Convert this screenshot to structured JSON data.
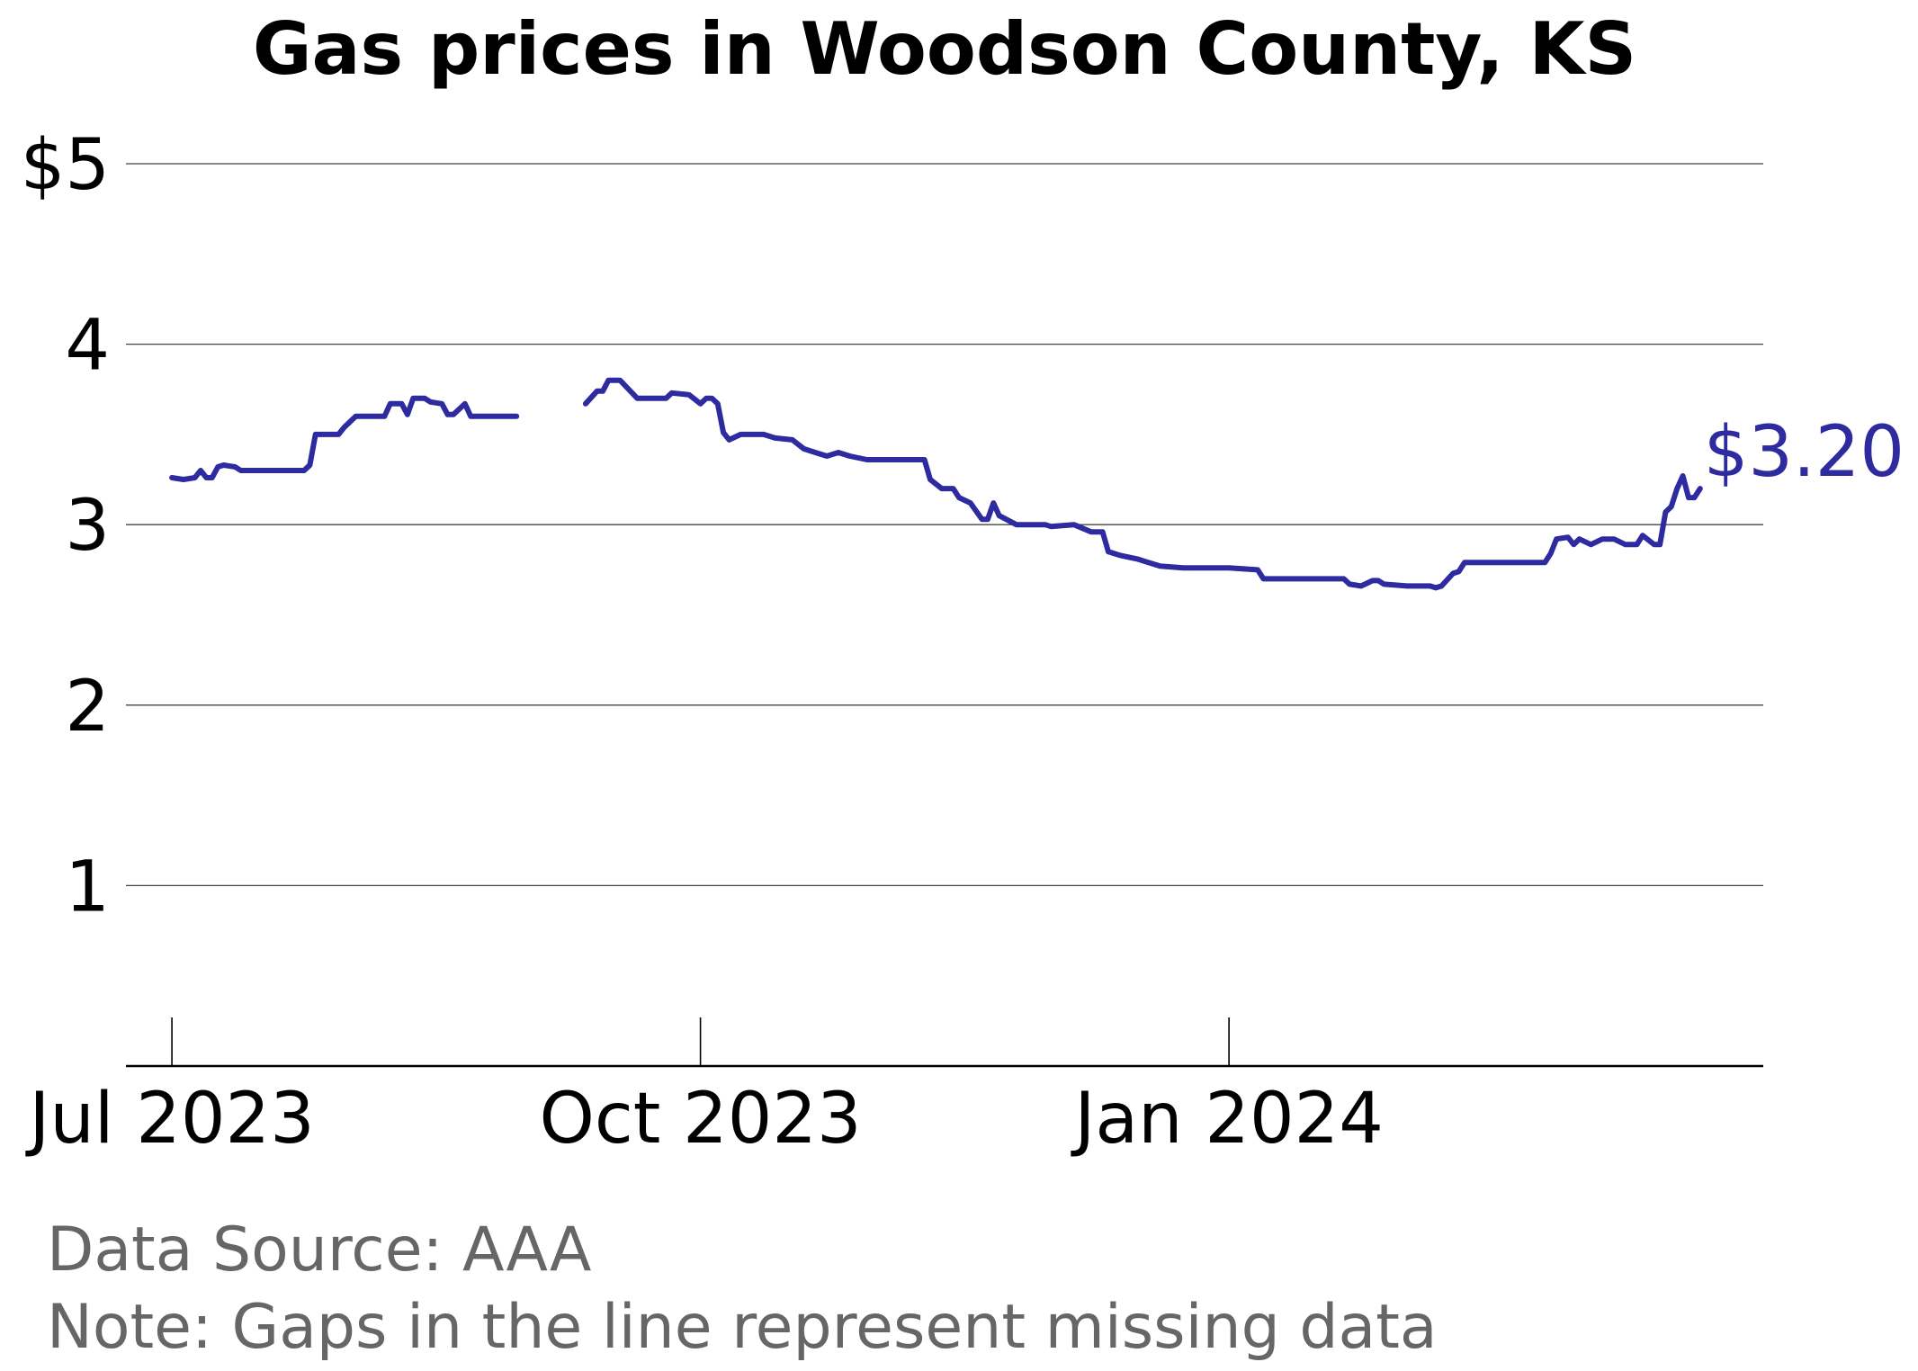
{
  "chart_data": {
    "type": "line",
    "title": "Gas prices in Woodson County, KS",
    "xlabel": "",
    "ylabel": "",
    "ylim": [
      0,
      5
    ],
    "xlim": [
      "2023-06-23",
      "2024-04-03"
    ],
    "grid": "horizontal",
    "legend": "none",
    "y_ticks": [
      {
        "value": 1,
        "label": "1"
      },
      {
        "value": 2,
        "label": "2"
      },
      {
        "value": 3,
        "label": "3"
      },
      {
        "value": 4,
        "label": "4"
      },
      {
        "value": 5,
        "label": "$5"
      }
    ],
    "x_ticks": [
      {
        "date": "2023-07-01",
        "label": "Jul 2023"
      },
      {
        "date": "2023-10-01",
        "label": "Oct 2023"
      },
      {
        "date": "2024-01-01",
        "label": "Jan 2024"
      }
    ],
    "end_label": "$3.20",
    "series": [
      {
        "color": "#2e2a9f",
        "segments": [
          [
            [
              "2023-07-01",
              3.26
            ],
            [
              "2023-07-03",
              3.25
            ],
            [
              "2023-07-05",
              3.26
            ],
            [
              "2023-07-06",
              3.3
            ],
            [
              "2023-07-07",
              3.26
            ],
            [
              "2023-07-08",
              3.26
            ],
            [
              "2023-07-09",
              3.32
            ],
            [
              "2023-07-10",
              3.33
            ],
            [
              "2023-07-12",
              3.32
            ],
            [
              "2023-07-13",
              3.3
            ],
            [
              "2023-07-20",
              3.3
            ],
            [
              "2023-07-24",
              3.3
            ],
            [
              "2023-07-25",
              3.33
            ],
            [
              "2023-07-26",
              3.5
            ],
            [
              "2023-07-30",
              3.5
            ],
            [
              "2023-07-31",
              3.54
            ],
            [
              "2023-08-02",
              3.6
            ],
            [
              "2023-08-07",
              3.6
            ],
            [
              "2023-08-08",
              3.67
            ],
            [
              "2023-08-10",
              3.67
            ],
            [
              "2023-08-11",
              3.61
            ],
            [
              "2023-08-12",
              3.7
            ],
            [
              "2023-08-14",
              3.7
            ],
            [
              "2023-08-15",
              3.68
            ],
            [
              "2023-08-17",
              3.67
            ],
            [
              "2023-08-18",
              3.61
            ],
            [
              "2023-08-19",
              3.61
            ],
            [
              "2023-08-21",
              3.67
            ],
            [
              "2023-08-22",
              3.6
            ],
            [
              "2023-08-30",
              3.6
            ]
          ],
          [
            [
              "2023-09-11",
              3.67
            ],
            [
              "2023-09-13",
              3.74
            ],
            [
              "2023-09-14",
              3.74
            ],
            [
              "2023-09-15",
              3.8
            ],
            [
              "2023-09-17",
              3.8
            ],
            [
              "2023-09-20",
              3.7
            ],
            [
              "2023-09-25",
              3.7
            ],
            [
              "2023-09-26",
              3.73
            ],
            [
              "2023-09-29",
              3.72
            ],
            [
              "2023-10-01",
              3.67
            ],
            [
              "2023-10-02",
              3.7
            ],
            [
              "2023-10-03",
              3.7
            ],
            [
              "2023-10-04",
              3.67
            ],
            [
              "2023-10-05",
              3.51
            ],
            [
              "2023-10-06",
              3.47
            ],
            [
              "2023-10-08",
              3.5
            ],
            [
              "2023-10-12",
              3.5
            ],
            [
              "2023-10-14",
              3.48
            ],
            [
              "2023-10-17",
              3.47
            ],
            [
              "2023-10-19",
              3.42
            ],
            [
              "2023-10-21",
              3.4
            ],
            [
              "2023-10-23",
              3.38
            ],
            [
              "2023-10-25",
              3.4
            ],
            [
              "2023-10-27",
              3.38
            ],
            [
              "2023-10-30",
              3.36
            ],
            [
              "2023-11-01",
              3.36
            ],
            [
              "2023-11-09",
              3.36
            ],
            [
              "2023-11-10",
              3.25
            ],
            [
              "2023-11-12",
              3.2
            ],
            [
              "2023-11-14",
              3.2
            ],
            [
              "2023-11-15",
              3.15
            ],
            [
              "2023-11-17",
              3.12
            ],
            [
              "2023-11-19",
              3.03
            ],
            [
              "2023-11-20",
              3.03
            ],
            [
              "2023-11-21",
              3.12
            ],
            [
              "2023-11-22",
              3.05
            ],
            [
              "2023-11-25",
              3.0
            ],
            [
              "2023-11-30",
              3.0
            ],
            [
              "2023-12-01",
              2.99
            ],
            [
              "2023-12-05",
              3.0
            ],
            [
              "2023-12-08",
              2.96
            ],
            [
              "2023-12-10",
              2.96
            ],
            [
              "2023-12-11",
              2.85
            ],
            [
              "2023-12-13",
              2.83
            ],
            [
              "2023-12-16",
              2.81
            ],
            [
              "2023-12-20",
              2.77
            ],
            [
              "2023-12-24",
              2.76
            ],
            [
              "2023-12-28",
              2.76
            ],
            [
              "2024-01-01",
              2.76
            ],
            [
              "2024-01-06",
              2.75
            ],
            [
              "2024-01-07",
              2.7
            ],
            [
              "2024-01-14",
              2.7
            ],
            [
              "2024-01-21",
              2.7
            ],
            [
              "2024-01-22",
              2.67
            ],
            [
              "2024-01-24",
              2.66
            ],
            [
              "2024-01-26",
              2.69
            ],
            [
              "2024-01-27",
              2.69
            ],
            [
              "2024-01-28",
              2.67
            ],
            [
              "2024-02-01",
              2.66
            ],
            [
              "2024-02-05",
              2.66
            ],
            [
              "2024-02-06",
              2.65
            ],
            [
              "2024-02-07",
              2.66
            ],
            [
              "2024-02-09",
              2.73
            ],
            [
              "2024-02-10",
              2.74
            ],
            [
              "2024-02-11",
              2.79
            ],
            [
              "2024-02-15",
              2.79
            ],
            [
              "2024-02-25",
              2.79
            ],
            [
              "2024-02-26",
              2.84
            ],
            [
              "2024-02-27",
              2.92
            ],
            [
              "2024-02-29",
              2.93
            ],
            [
              "2024-03-01",
              2.89
            ],
            [
              "2024-03-02",
              2.92
            ],
            [
              "2024-03-04",
              2.89
            ],
            [
              "2024-03-06",
              2.92
            ],
            [
              "2024-03-08",
              2.92
            ],
            [
              "2024-03-10",
              2.89
            ],
            [
              "2024-03-12",
              2.89
            ],
            [
              "2024-03-13",
              2.94
            ],
            [
              "2024-03-15",
              2.89
            ],
            [
              "2024-03-16",
              2.89
            ],
            [
              "2024-03-17",
              3.07
            ],
            [
              "2024-03-18",
              3.1
            ],
            [
              "2024-03-19",
              3.2
            ],
            [
              "2024-03-20",
              3.27
            ],
            [
              "2024-03-21",
              3.15
            ],
            [
              "2024-03-22",
              3.15
            ],
            [
              "2024-03-23",
              3.2
            ]
          ]
        ]
      }
    ]
  },
  "footnotes": {
    "source": "Data Source: AAA",
    "note": "Note: Gaps in the line represent missing data"
  }
}
